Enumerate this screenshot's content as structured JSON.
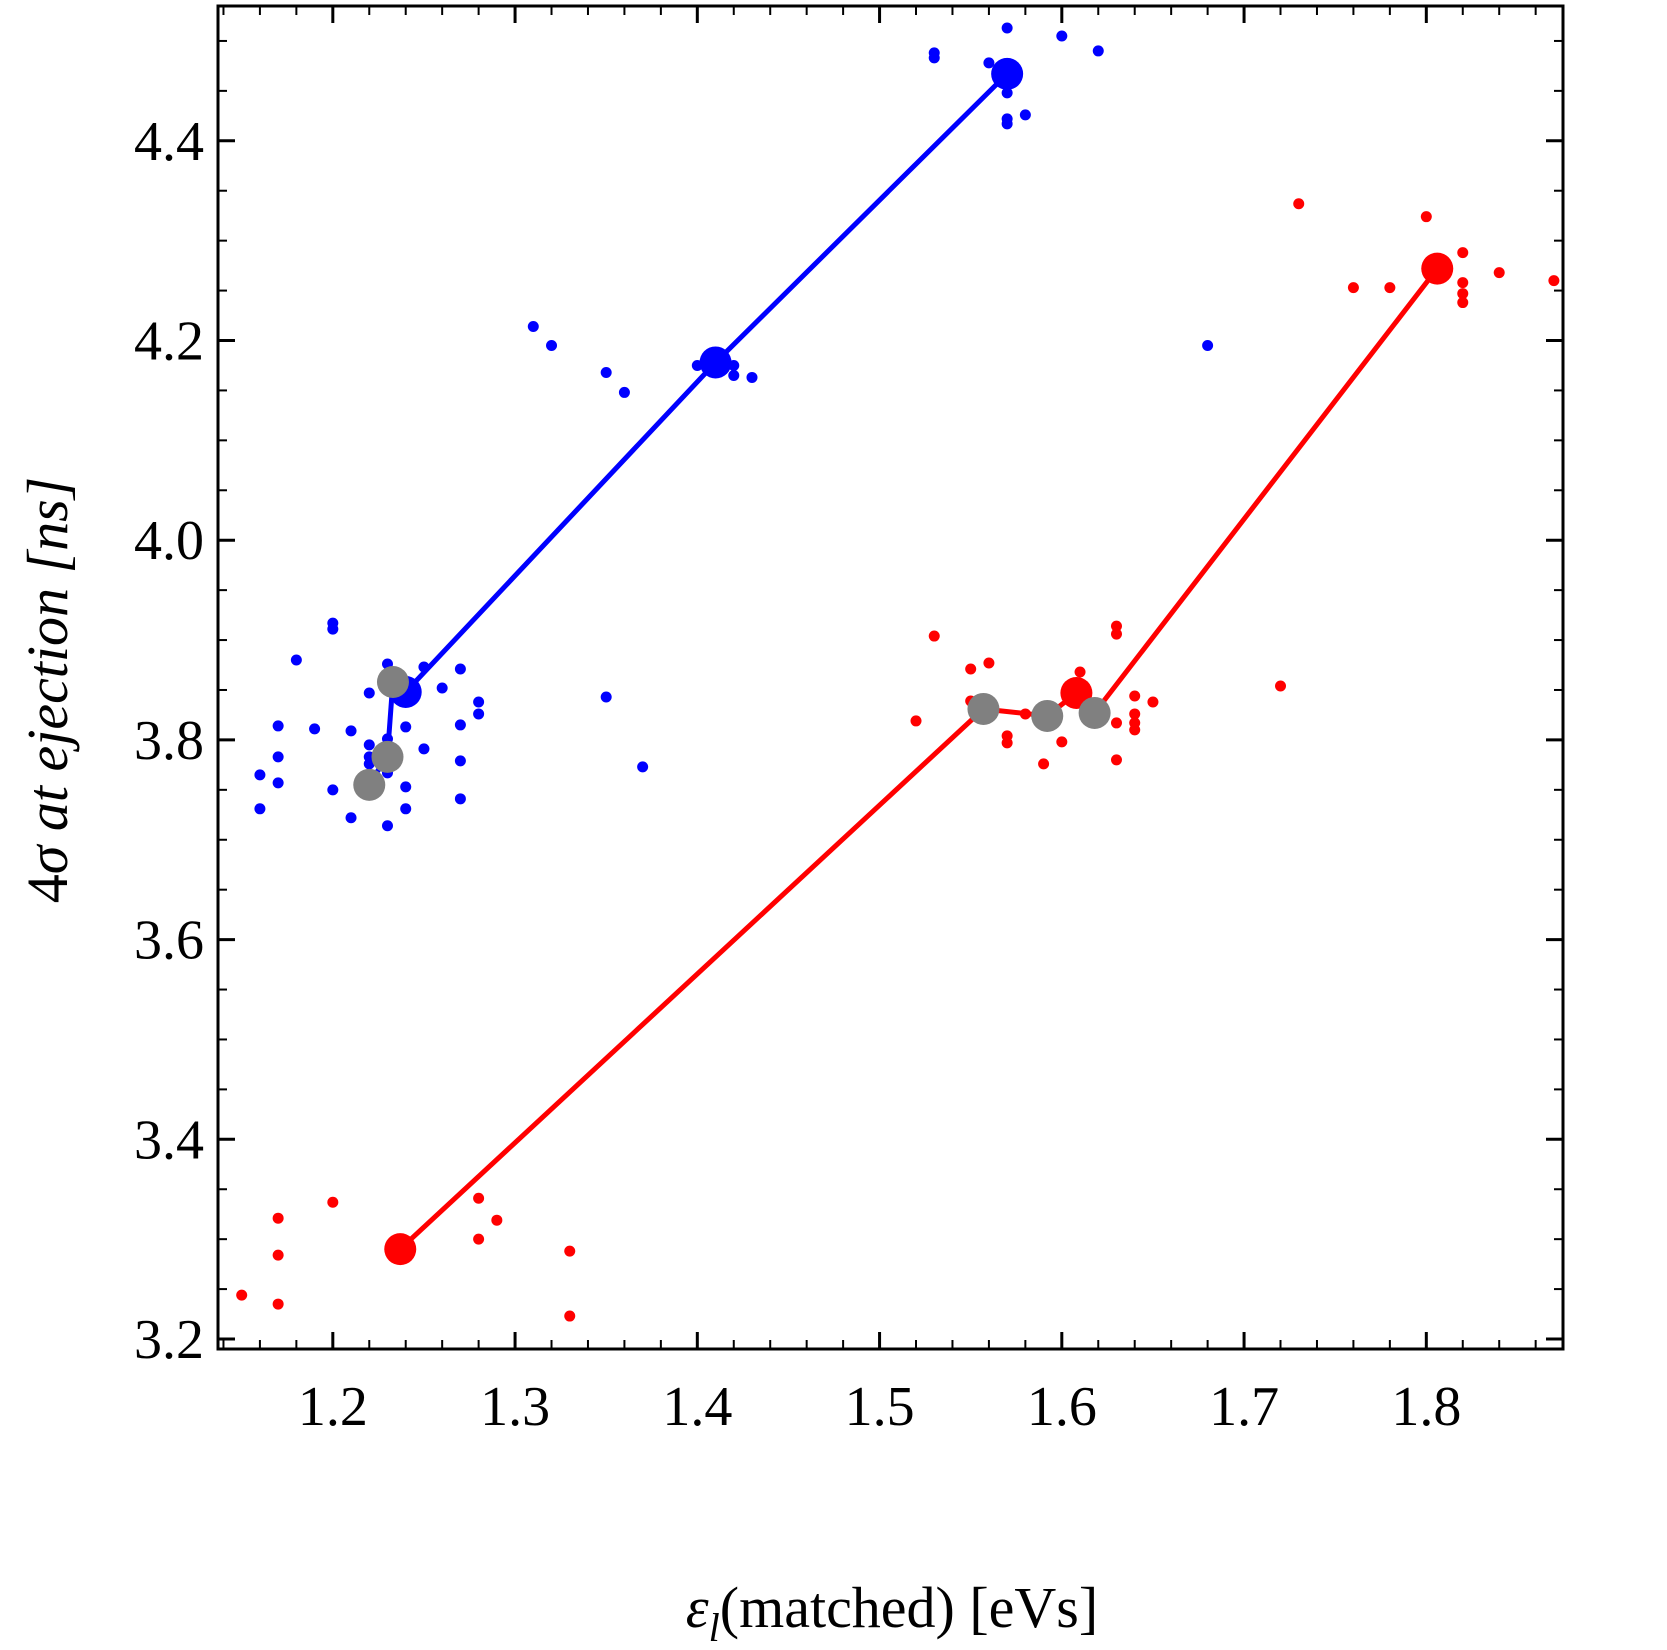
{
  "chart_data": {
    "type": "scatter",
    "title": "",
    "xlabel": "(matched) [eVs]",
    "xlabel_symbol": "ε",
    "xlabel_subscript": "l",
    "ylabel": "σ at ejection [ns]",
    "ylabel_prefix": "4",
    "xlim": [
      1.137,
      1.875
    ],
    "ylim": [
      3.19,
      4.535
    ],
    "x_ticks": [
      1.2,
      1.3,
      1.4,
      1.5,
      1.6,
      1.7,
      1.8
    ],
    "x_tick_labels": [
      "1.2",
      "1.3",
      "1.4",
      "1.5",
      "1.6",
      "1.7",
      "1.8"
    ],
    "y_ticks": [
      3.2,
      3.4,
      3.6,
      3.8,
      4.0,
      4.2,
      4.4
    ],
    "y_tick_labels": [
      "3.2",
      "3.4",
      "3.6",
      "3.8",
      "4.0",
      "4.2",
      "4.4"
    ],
    "x_minor_step": 0.02,
    "y_minor_step": 0.05,
    "grid": false,
    "colors": {
      "blue": "#0000ff",
      "red": "#ff0000",
      "gray": "#808080"
    },
    "series": [
      {
        "color": "#0000ff",
        "line": [
          [
            1.22,
            3.755
          ],
          [
            1.23,
            3.785
          ],
          [
            1.233,
            3.86
          ],
          [
            1.24,
            3.848
          ],
          [
            1.41,
            4.178
          ],
          [
            1.57,
            4.467
          ]
        ],
        "large_points": [
          [
            1.24,
            3.848
          ],
          [
            1.41,
            4.178
          ],
          [
            1.57,
            4.467
          ]
        ],
        "small_points": [
          [
            1.16,
            3.765
          ],
          [
            1.16,
            3.731
          ],
          [
            1.17,
            3.814
          ],
          [
            1.17,
            3.783
          ],
          [
            1.17,
            3.757
          ],
          [
            1.18,
            3.88
          ],
          [
            1.19,
            3.811
          ],
          [
            1.2,
            3.917
          ],
          [
            1.2,
            3.911
          ],
          [
            1.2,
            3.75
          ],
          [
            1.21,
            3.809
          ],
          [
            1.21,
            3.722
          ],
          [
            1.22,
            3.847
          ],
          [
            1.22,
            3.795
          ],
          [
            1.22,
            3.783
          ],
          [
            1.22,
            3.776
          ],
          [
            1.23,
            3.876
          ],
          [
            1.23,
            3.801
          ],
          [
            1.23,
            3.775
          ],
          [
            1.23,
            3.767
          ],
          [
            1.23,
            3.714
          ],
          [
            1.24,
            3.813
          ],
          [
            1.24,
            3.753
          ],
          [
            1.24,
            3.731
          ],
          [
            1.25,
            3.873
          ],
          [
            1.25,
            3.791
          ],
          [
            1.26,
            3.852
          ],
          [
            1.27,
            3.871
          ],
          [
            1.27,
            3.815
          ],
          [
            1.27,
            3.779
          ],
          [
            1.27,
            3.741
          ],
          [
            1.28,
            3.838
          ],
          [
            1.28,
            3.826
          ],
          [
            1.31,
            4.214
          ],
          [
            1.32,
            4.195
          ],
          [
            1.35,
            4.168
          ],
          [
            1.35,
            3.843
          ],
          [
            1.36,
            4.148
          ],
          [
            1.37,
            3.773
          ],
          [
            1.4,
            4.175
          ],
          [
            1.42,
            4.175
          ],
          [
            1.42,
            4.165
          ],
          [
            1.43,
            4.163
          ],
          [
            1.53,
            4.488
          ],
          [
            1.53,
            4.483
          ],
          [
            1.56,
            4.478
          ],
          [
            1.57,
            4.513
          ],
          [
            1.57,
            4.448
          ],
          [
            1.57,
            4.422
          ],
          [
            1.57,
            4.417
          ],
          [
            1.58,
            4.426
          ],
          [
            1.6,
            4.505
          ],
          [
            1.62,
            4.49
          ],
          [
            1.68,
            4.195
          ]
        ]
      },
      {
        "color": "#ff0000",
        "line": [
          [
            1.237,
            3.29
          ],
          [
            1.557,
            3.831
          ],
          [
            1.592,
            3.824
          ],
          [
            1.608,
            3.847
          ],
          [
            1.618,
            3.827
          ],
          [
            1.806,
            4.272
          ]
        ],
        "large_points": [
          [
            1.237,
            3.29
          ],
          [
            1.608,
            3.847
          ],
          [
            1.806,
            4.272
          ]
        ],
        "small_points": [
          [
            1.15,
            3.244
          ],
          [
            1.17,
            3.321
          ],
          [
            1.17,
            3.284
          ],
          [
            1.17,
            3.235
          ],
          [
            1.2,
            3.337
          ],
          [
            1.28,
            3.341
          ],
          [
            1.28,
            3.3
          ],
          [
            1.29,
            3.319
          ],
          [
            1.33,
            3.288
          ],
          [
            1.33,
            3.223
          ],
          [
            1.52,
            3.819
          ],
          [
            1.53,
            3.904
          ],
          [
            1.55,
            3.871
          ],
          [
            1.55,
            3.839
          ],
          [
            1.56,
            3.877
          ],
          [
            1.57,
            3.804
          ],
          [
            1.57,
            3.797
          ],
          [
            1.58,
            3.826
          ],
          [
            1.59,
            3.776
          ],
          [
            1.6,
            3.798
          ],
          [
            1.61,
            3.868
          ],
          [
            1.63,
            3.914
          ],
          [
            1.63,
            3.906
          ],
          [
            1.63,
            3.817
          ],
          [
            1.63,
            3.78
          ],
          [
            1.64,
            3.844
          ],
          [
            1.64,
            3.826
          ],
          [
            1.64,
            3.817
          ],
          [
            1.64,
            3.81
          ],
          [
            1.65,
            3.838
          ],
          [
            1.72,
            3.854
          ],
          [
            1.73,
            4.337
          ],
          [
            1.76,
            4.253
          ],
          [
            1.78,
            4.253
          ],
          [
            1.8,
            4.324
          ],
          [
            1.82,
            4.288
          ],
          [
            1.82,
            4.258
          ],
          [
            1.82,
            4.247
          ],
          [
            1.82,
            4.238
          ],
          [
            1.84,
            4.268
          ],
          [
            1.87,
            4.26
          ]
        ]
      },
      {
        "color": "#808080",
        "large_points": [
          [
            1.22,
            3.755
          ],
          [
            1.23,
            3.783
          ],
          [
            1.233,
            3.858
          ],
          [
            1.557,
            3.831
          ],
          [
            1.592,
            3.824
          ],
          [
            1.618,
            3.827
          ]
        ]
      }
    ]
  }
}
